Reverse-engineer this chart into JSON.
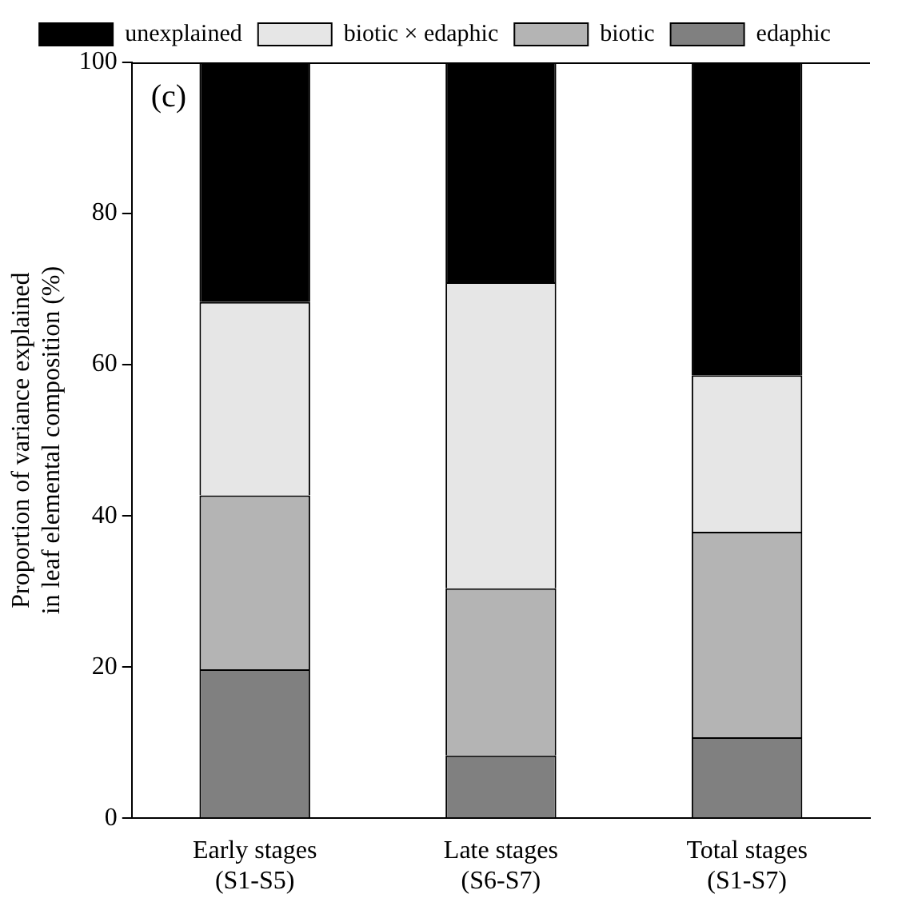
{
  "chart_data": {
    "type": "bar",
    "stacked": true,
    "ylabel": "Proportion of variance explained\nin leaf elemental composition (%)",
    "categories": [
      "Early stages\n(S1-S5)",
      "Late stages\n(S6-S7)",
      "Total stages\n(S1-S7)"
    ],
    "series": [
      {
        "name": "edaphic",
        "color": "#808080",
        "values": [
          19.7,
          8.3,
          10.7
        ]
      },
      {
        "name": "biotic",
        "color": "#b4b4b4",
        "values": [
          23.0,
          22.1,
          27.2
        ]
      },
      {
        "name": "biotic × edaphic",
        "color": "#e6e6e6",
        "values": [
          25.6,
          40.5,
          20.7
        ]
      },
      {
        "name": "unexplained",
        "color": "#000000",
        "values": [
          31.7,
          29.1,
          41.4
        ]
      }
    ],
    "ylim": [
      0,
      100
    ],
    "yticks": [
      0,
      20,
      40,
      60,
      80,
      100
    ],
    "grid": false,
    "legend": "top",
    "annotations": [
      "(c)"
    ]
  }
}
